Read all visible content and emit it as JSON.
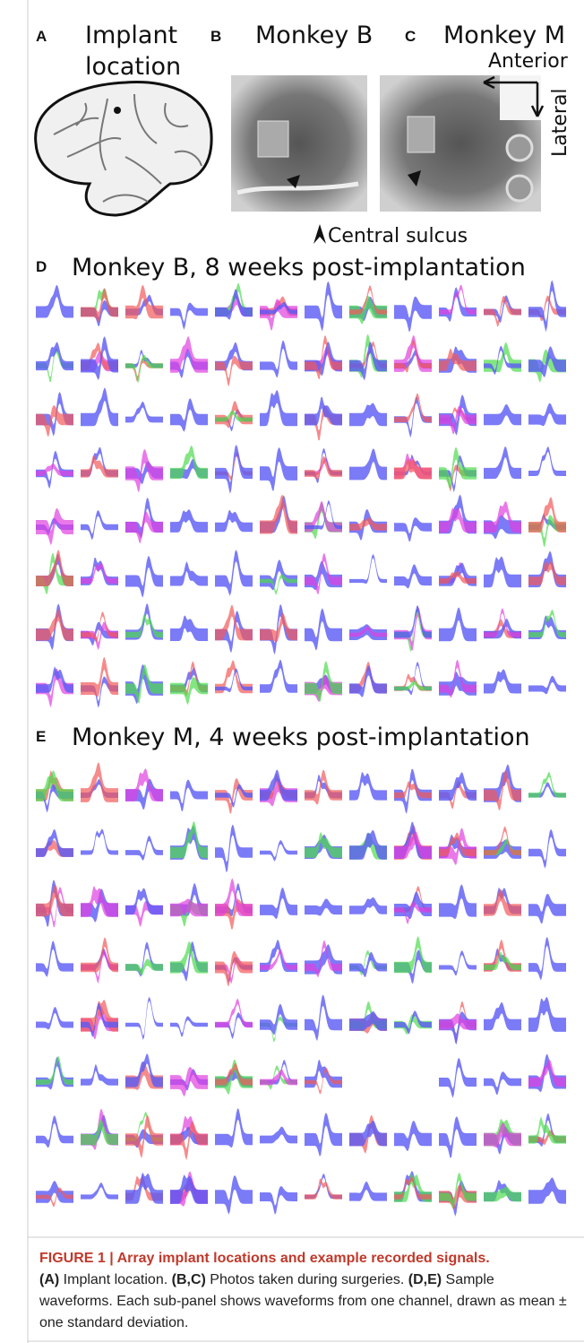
{
  "panel_a": {
    "letter": "A",
    "title_lines": [
      "Implant",
      "location"
    ]
  },
  "panel_b": {
    "letter": "B",
    "title": "Monkey B"
  },
  "panel_c": {
    "letter": "C",
    "title": "Monkey M",
    "anterior": "Anterior",
    "lateral": "Lateral"
  },
  "central_sulcus": "Central sulcus",
  "panel_d": {
    "letter": "D",
    "title": "Monkey B, 8 weeks post-implantation"
  },
  "panel_e": {
    "letter": "E",
    "title": "Monkey M, 4 weeks post-implantation"
  },
  "caption": {
    "title": "FIGURE 1 | Array implant locations and example recorded signals.",
    "parts": [
      {
        "label": "(A)",
        "text": " Implant location. "
      },
      {
        "label": "(B,C)",
        "text": " Photos taken during surgeries. "
      },
      {
        "label": "(D,E)",
        "text": " Sample waveforms. Each sub-panel shows waveforms from one channel, drawn as mean ± one standard deviation."
      }
    ]
  }
}
